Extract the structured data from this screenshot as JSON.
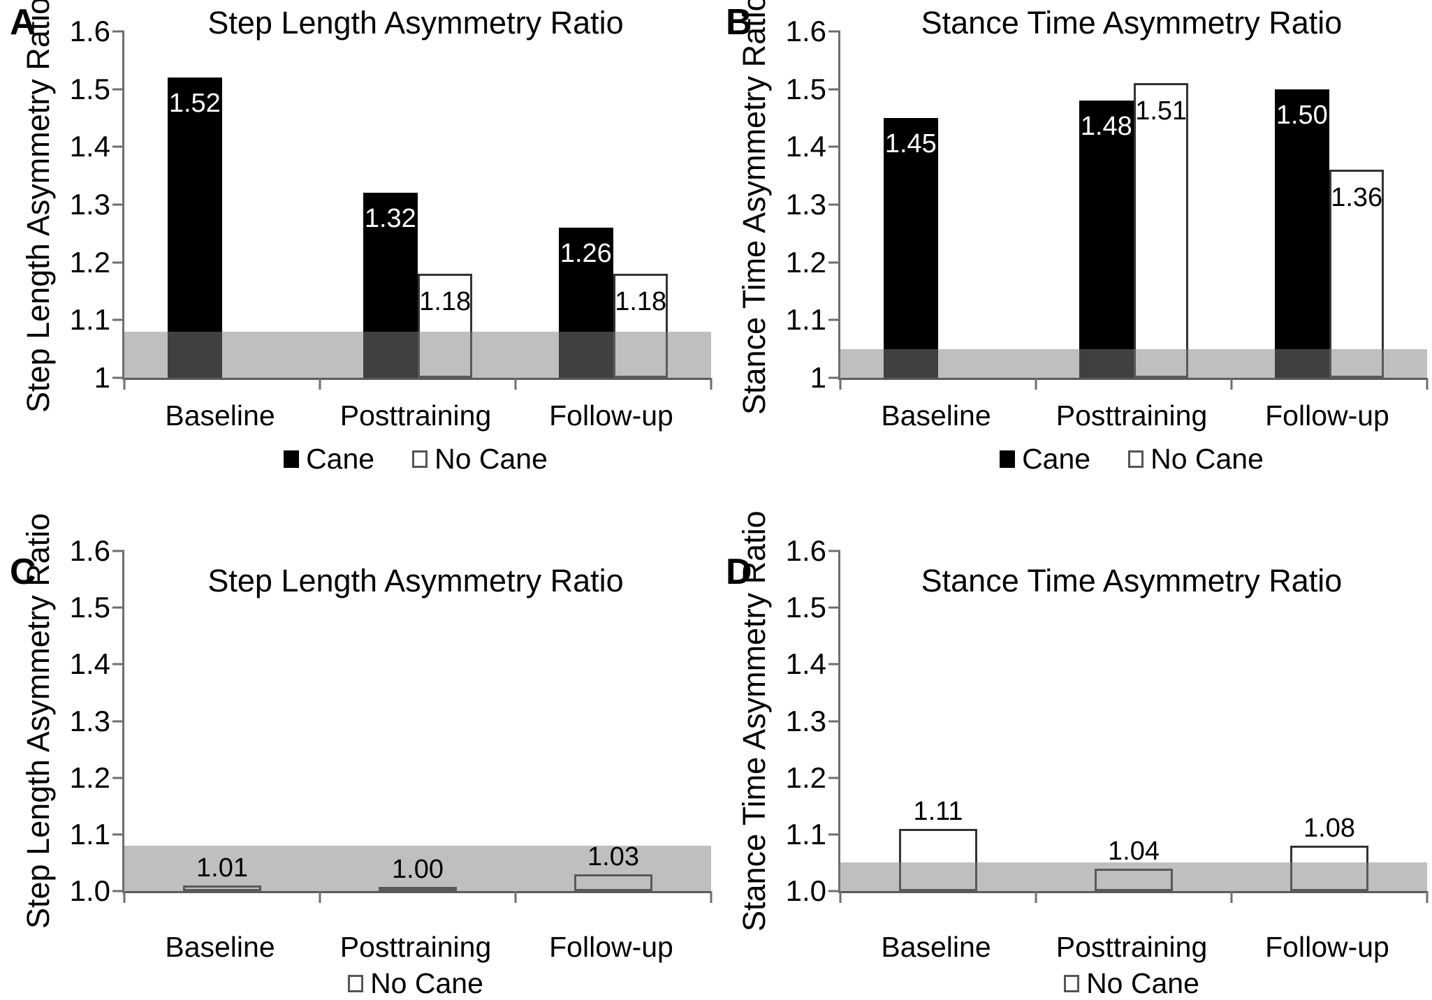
{
  "colors": {
    "bar_cane": "#000000",
    "bar_no_cane": "#ffffff",
    "bar_outline": "#333333",
    "reference_band": "rgba(128,128,128,0.5)",
    "axis": "#6e6e6e",
    "text": "#000000",
    "background": "#ffffff"
  },
  "chart_data": [
    {
      "panel": "A",
      "type": "bar",
      "title": "Step Length Asymmetry Ratio",
      "ylabel": "Step Length Asymmetry Ratio",
      "xlabel": "",
      "ylim": [
        1.0,
        1.6
      ],
      "grid": false,
      "legend_position": "bottom",
      "yticks": [
        {
          "value": 1.6,
          "label": "1.6"
        },
        {
          "value": 1.5,
          "label": "1.5"
        },
        {
          "value": 1.4,
          "label": "1.4"
        },
        {
          "value": 1.3,
          "label": "1.3"
        },
        {
          "value": 1.2,
          "label": "1.2"
        },
        {
          "value": 1.1,
          "label": "1.1"
        },
        {
          "value": 1.0,
          "label": "1"
        }
      ],
      "categories": [
        "Baseline",
        "Posttraining",
        "Follow-up"
      ],
      "series": [
        {
          "name": "Cane",
          "swatch": "black",
          "values": [
            1.52,
            1.32,
            1.26
          ],
          "labels": [
            "1.52",
            "1.32",
            "1.26"
          ]
        },
        {
          "name": "No Cane",
          "swatch": "white",
          "values": [
            null,
            1.18,
            1.18
          ],
          "labels": [
            null,
            "1.18",
            "1.18"
          ]
        }
      ],
      "reference_band": {
        "from": 1.0,
        "to": 1.08
      }
    },
    {
      "panel": "B",
      "type": "bar",
      "title": "Stance Time Asymmetry Ratio",
      "ylabel": "Stance Time Asymmetry Ratio",
      "xlabel": "",
      "ylim": [
        1.0,
        1.6
      ],
      "grid": false,
      "legend_position": "bottom",
      "yticks": [
        {
          "value": 1.6,
          "label": "1.6"
        },
        {
          "value": 1.5,
          "label": "1.5"
        },
        {
          "value": 1.4,
          "label": "1.4"
        },
        {
          "value": 1.3,
          "label": "1.3"
        },
        {
          "value": 1.2,
          "label": "1.2"
        },
        {
          "value": 1.1,
          "label": "1.1"
        },
        {
          "value": 1.0,
          "label": "1"
        }
      ],
      "categories": [
        "Baseline",
        "Posttraining",
        "Follow-up"
      ],
      "series": [
        {
          "name": "Cane",
          "swatch": "black",
          "values": [
            1.45,
            1.48,
            1.5
          ],
          "labels": [
            "1.45",
            "1.48",
            "1.50"
          ]
        },
        {
          "name": "No Cane",
          "swatch": "white",
          "values": [
            null,
            1.51,
            1.36
          ],
          "labels": [
            null,
            "1.51",
            "1.36"
          ]
        }
      ],
      "reference_band": {
        "from": 1.0,
        "to": 1.05
      }
    },
    {
      "panel": "C",
      "type": "bar",
      "title": "Step Length Asymmetry Ratio",
      "ylabel": "Step Length Asymmetry Ratio",
      "xlabel": "",
      "ylim": [
        1.0,
        1.6
      ],
      "grid": false,
      "legend_position": "bottom",
      "yticks": [
        {
          "value": 1.6,
          "label": "1.6"
        },
        {
          "value": 1.5,
          "label": "1.5"
        },
        {
          "value": 1.4,
          "label": "1.4"
        },
        {
          "value": 1.3,
          "label": "1.3"
        },
        {
          "value": 1.2,
          "label": "1.2"
        },
        {
          "value": 1.1,
          "label": "1.1"
        },
        {
          "value": 1.0,
          "label": "1.0"
        }
      ],
      "categories": [
        "Baseline",
        "Posttraining",
        "Follow-up"
      ],
      "series": [
        {
          "name": "No Cane",
          "swatch": "white",
          "values": [
            1.01,
            1.0,
            1.03
          ],
          "labels": [
            "1.01",
            "1.00",
            "1.03"
          ]
        }
      ],
      "reference_band": {
        "from": 1.0,
        "to": 1.08
      }
    },
    {
      "panel": "D",
      "type": "bar",
      "title": "Stance Time Asymmetry Ratio",
      "ylabel": "Stance Time Asymmetry Ratio",
      "xlabel": "",
      "ylim": [
        1.0,
        1.6
      ],
      "grid": false,
      "legend_position": "bottom",
      "yticks": [
        {
          "value": 1.6,
          "label": "1.6"
        },
        {
          "value": 1.5,
          "label": "1.5"
        },
        {
          "value": 1.4,
          "label": "1.4"
        },
        {
          "value": 1.3,
          "label": "1.3"
        },
        {
          "value": 1.2,
          "label": "1.2"
        },
        {
          "value": 1.1,
          "label": "1.1"
        },
        {
          "value": 1.0,
          "label": "1.0"
        }
      ],
      "categories": [
        "Baseline",
        "Posttraining",
        "Follow-up"
      ],
      "series": [
        {
          "name": "No Cane",
          "swatch": "white",
          "values": [
            1.11,
            1.04,
            1.08
          ],
          "labels": [
            "1.11",
            "1.04",
            "1.08"
          ]
        }
      ],
      "reference_band": {
        "from": 1.0,
        "to": 1.05
      }
    }
  ]
}
